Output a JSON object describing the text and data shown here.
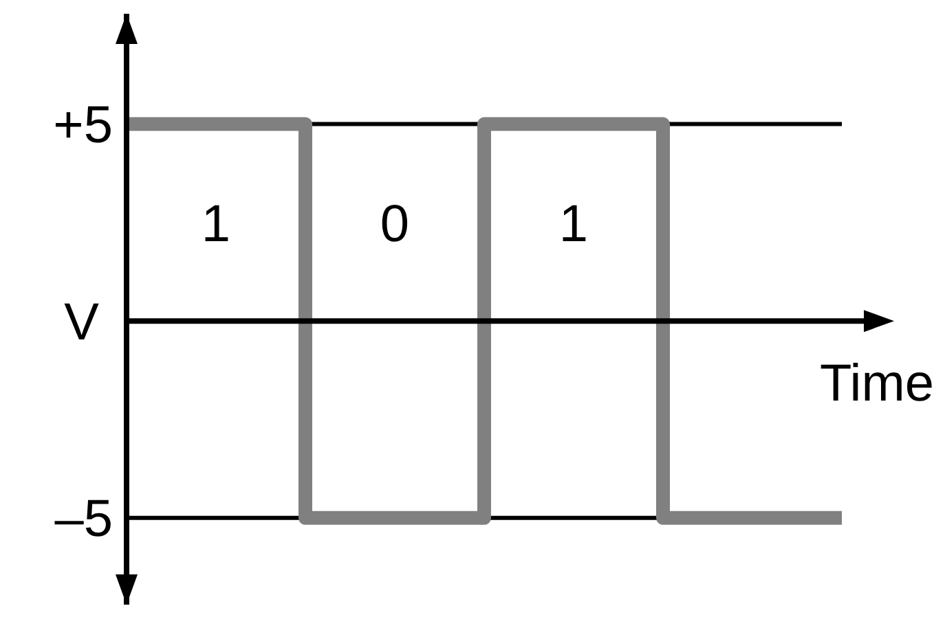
{
  "chart_data": {
    "type": "step",
    "ylabel": "V",
    "xlabel": "Time",
    "categories": [
      null,
      null,
      null,
      null,
      null
    ],
    "series": [
      {
        "color": "#808080",
        "values": [
          5,
          -5,
          5,
          -5,
          -5
        ]
      }
    ],
    "ylim": [
      -7.2,
      7.8
    ],
    "yticks": [
      {
        "value": 5,
        "label": "+5"
      },
      {
        "value": -5,
        "label": "–5"
      }
    ],
    "grid": "y",
    "tick_labels": "y",
    "annotations": [
      "1",
      "0",
      "1"
    ]
  }
}
